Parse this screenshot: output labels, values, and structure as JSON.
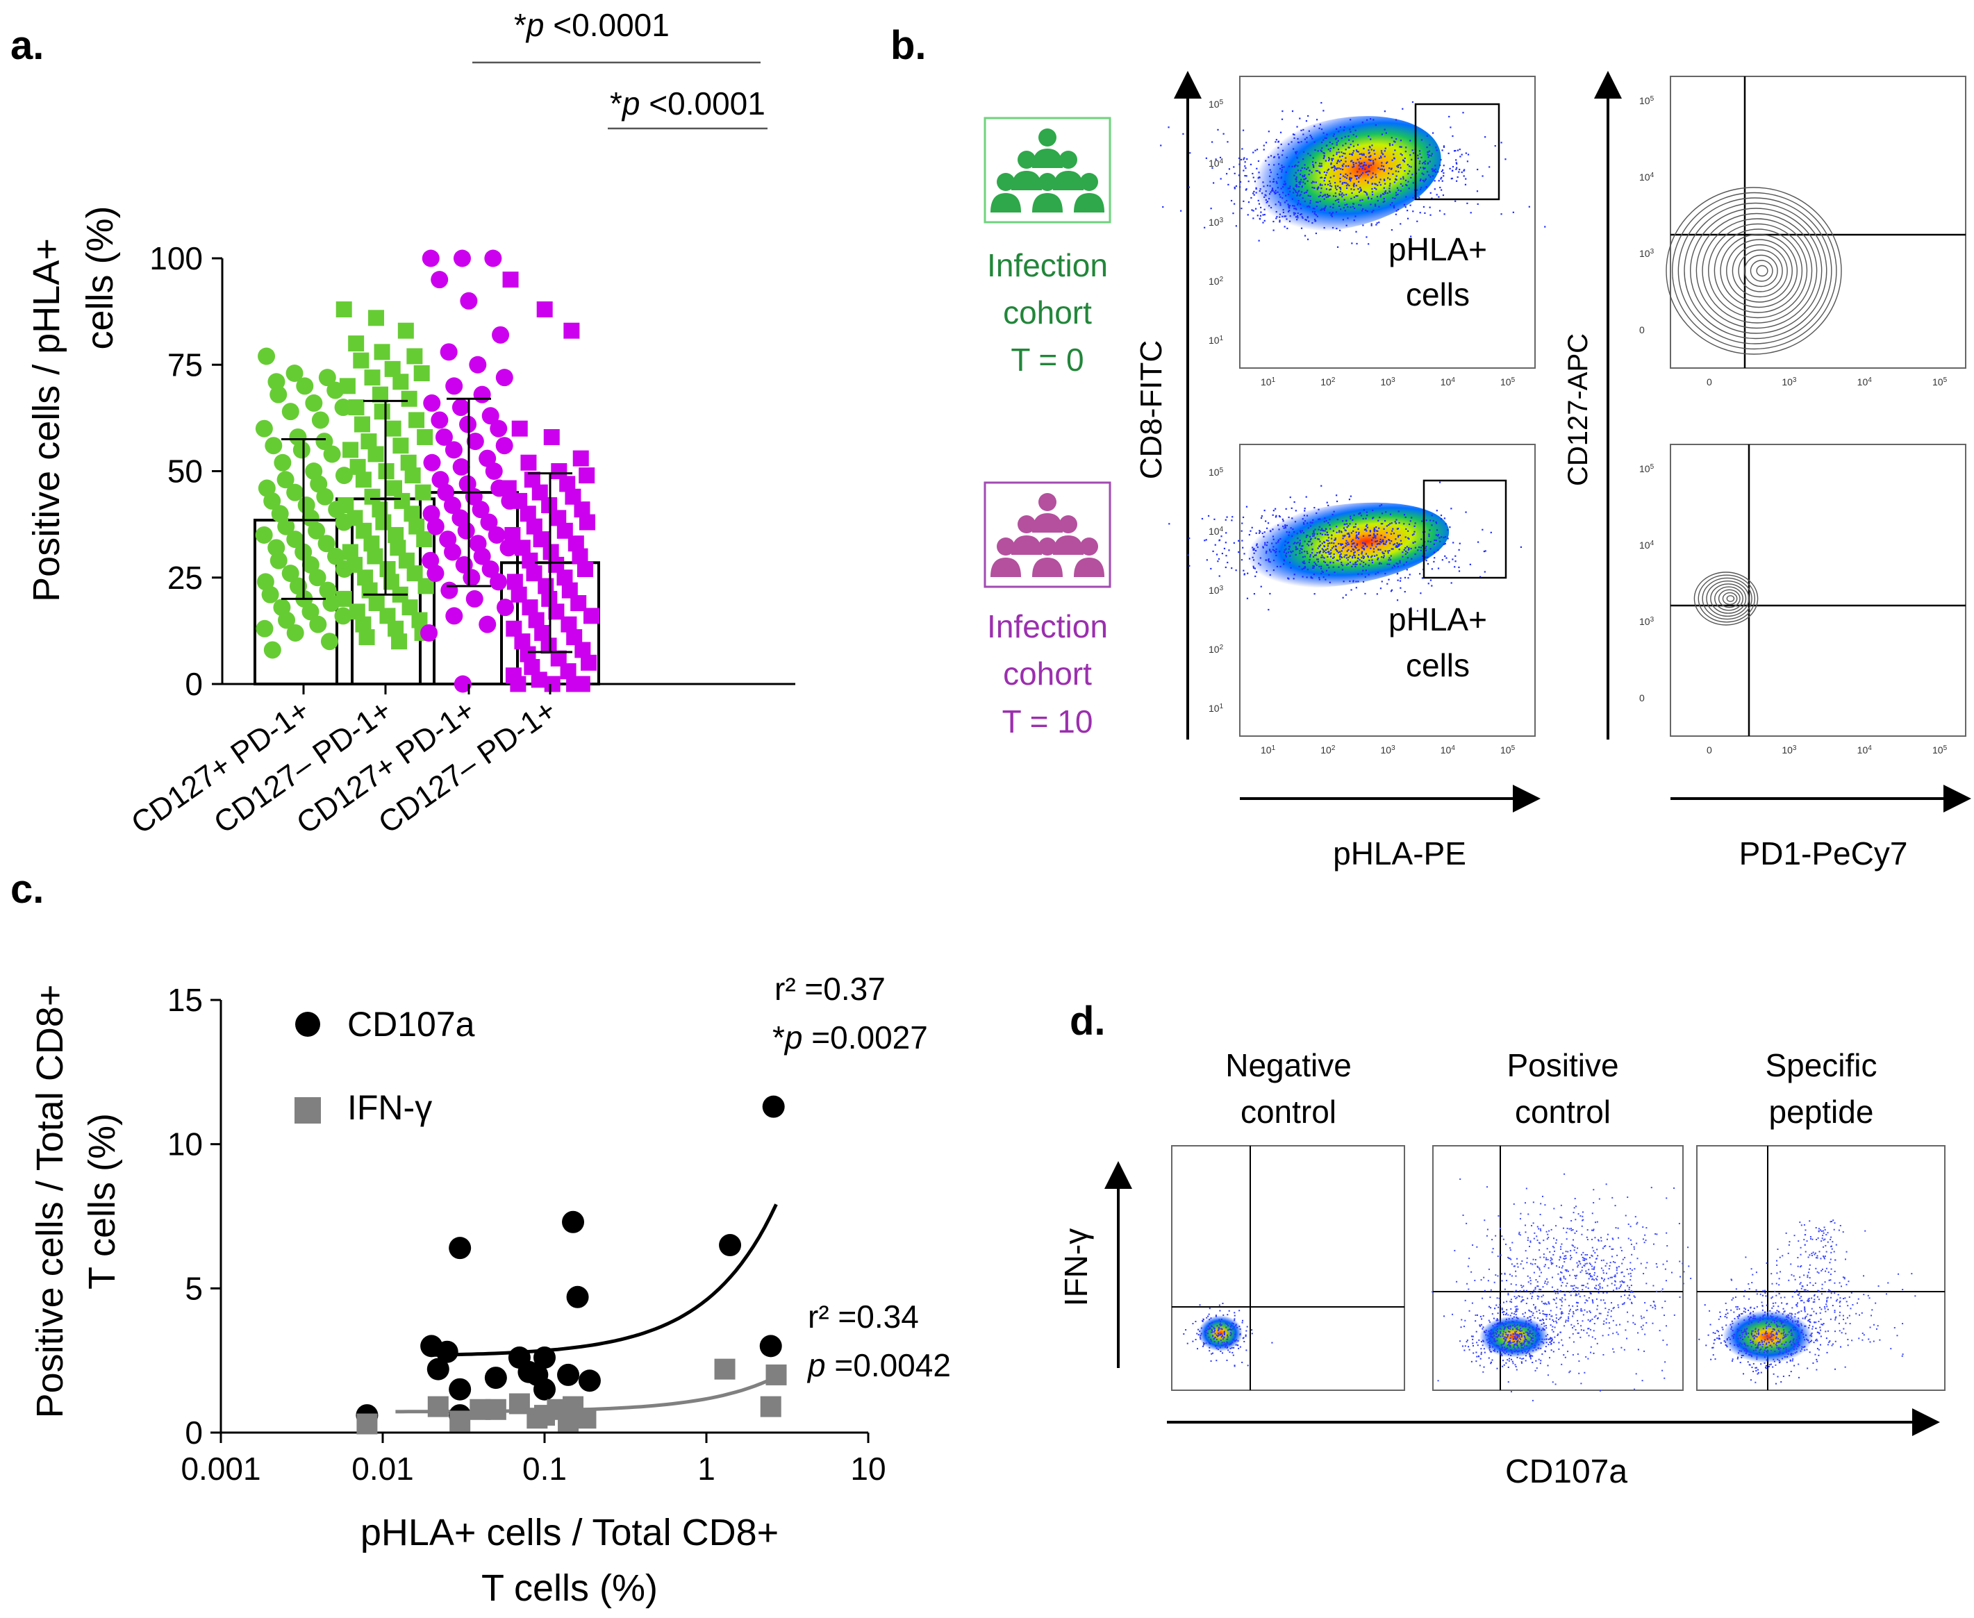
{
  "panels": {
    "a": {
      "label": "a.",
      "sig1": {
        "star": "*",
        "p": "p",
        "rest": " <0.0001"
      },
      "sig2": {
        "star": "*",
        "p": "p",
        "rest": " <0.0001"
      }
    },
    "b": {
      "label": "b.",
      "cohort_t0": {
        "line1": "Infection",
        "line2": "cohort",
        "line3": "T = 0",
        "color": "#22863a"
      },
      "cohort_t10": {
        "line1": "Infection",
        "line2": "cohort",
        "line3": "T = 10",
        "color": "#9b2fae"
      },
      "icon_color_t0": "#2ea84a",
      "icon_color_t10": "#b4509e",
      "ylabel_left": "CD8-FITC",
      "xlabel_left": "pHLA-PE",
      "ylabel_right": "CD127-APC",
      "xlabel_right": "PD1-PeCy7",
      "gate_label_1": "pHLA+",
      "gate_label_2": "cells",
      "log_ticks": [
        "10",
        "10",
        "10",
        "10",
        "10"
      ],
      "log_exps": [
        "1",
        "2",
        "3",
        "4",
        "5"
      ],
      "contour_ticks_y": [
        "0",
        "10",
        "10",
        "10"
      ],
      "contour_exps_y": [
        "",
        "3",
        "4",
        "5"
      ],
      "contour_ticks_x": [
        "0",
        "10",
        "10",
        "10"
      ],
      "contour_exps_x": [
        "",
        "3",
        "4",
        "5"
      ]
    },
    "c": {
      "label": "c."
    },
    "d": {
      "label": "d.",
      "titles": [
        {
          "line1": "Negative",
          "line2": "control"
        },
        {
          "line1": "Positive",
          "line2": "control"
        },
        {
          "line1": "Specific",
          "line2": "peptide"
        }
      ],
      "ylabel": "IFN-γ",
      "xlabel": "CD107a"
    }
  },
  "chart_data": [
    {
      "type": "scatter",
      "title": "",
      "ylabel_line1": "Positive cells / pHLA+",
      "ylabel_line2": "cells (%)",
      "ylim": [
        0,
        100
      ],
      "yticks": [
        "0",
        "25",
        "50",
        "75",
        "100"
      ],
      "categories": [
        "CD127+ PD-1+",
        "CD127– PD-1+",
        "CD127+ PD-1+",
        "CD127– PD-1+"
      ],
      "series": [
        {
          "name": "CD127+ PD-1+ (T=0)",
          "color": "#66cc33",
          "marker": "circle",
          "mean": 38.5,
          "sd_low": 20,
          "sd_high": 57.5,
          "values": [
            77,
            73,
            72,
            71,
            70,
            69,
            68,
            66,
            65,
            64,
            62,
            60,
            58,
            57,
            56,
            55,
            54,
            52,
            50,
            49,
            48,
            47,
            46,
            45,
            44,
            43,
            42,
            41,
            40,
            39,
            38,
            37,
            36,
            35,
            34,
            33,
            32,
            31,
            30,
            29,
            28,
            27,
            26,
            25,
            24,
            23,
            22,
            21,
            20,
            19,
            18,
            17,
            16,
            15,
            14,
            13,
            12,
            10,
            8
          ]
        },
        {
          "name": "CD127– PD-1+ (T=0)",
          "color": "#66cc33",
          "marker": "square",
          "mean": 43.5,
          "sd_low": 21,
          "sd_high": 66.5,
          "values": [
            88,
            86,
            83,
            80,
            78,
            77,
            76,
            74,
            73,
            72,
            71,
            70,
            68,
            67,
            65,
            64,
            62,
            61,
            60,
            58,
            57,
            56,
            55,
            54,
            52,
            51,
            50,
            49,
            48,
            46,
            45,
            44,
            43,
            42,
            41,
            40,
            39,
            38,
            37,
            36,
            35,
            34,
            33,
            32,
            31,
            30,
            29,
            28,
            27,
            26,
            25,
            24,
            23,
            22,
            21,
            20,
            19,
            18,
            17,
            16,
            15,
            14,
            13,
            12,
            11,
            10
          ]
        },
        {
          "name": "CD127+ PD-1+ (T=10)",
          "color": "#cc00ee",
          "marker": "circle",
          "mean": 45,
          "sd_low": 23,
          "sd_high": 67,
          "values": [
            100,
            100,
            100,
            95,
            90,
            82,
            78,
            75,
            72,
            70,
            68,
            66,
            65,
            63,
            62,
            61,
            60,
            58,
            57,
            56,
            55,
            53,
            52,
            51,
            50,
            48,
            47,
            46,
            45,
            44,
            43,
            42,
            41,
            40,
            39,
            38,
            37,
            36,
            35,
            34,
            33,
            32,
            31,
            30,
            29,
            28,
            27,
            26,
            25,
            24,
            22,
            20,
            18,
            16,
            14,
            12,
            0
          ]
        },
        {
          "name": "CD127– PD-1+ (T=10)",
          "color": "#cc00ee",
          "marker": "square",
          "mean": 28.5,
          "sd_low": 7.5,
          "sd_high": 49.5,
          "values": [
            95,
            88,
            83,
            60,
            58,
            53,
            52,
            50,
            49,
            48,
            47,
            46,
            45,
            44,
            43,
            42,
            41,
            40,
            39,
            38,
            37,
            36,
            35,
            34,
            33,
            32,
            31,
            30,
            29,
            28,
            27,
            26,
            25,
            24,
            23,
            22,
            21,
            20,
            19,
            18,
            17,
            16,
            15,
            14,
            13,
            12,
            11,
            10,
            9,
            8,
            7,
            6,
            5,
            4,
            3,
            2,
            1,
            0,
            0,
            0,
            0
          ]
        }
      ]
    },
    {
      "type": "scatter",
      "title": "",
      "xlabel_line1": "pHLA+ cells / Total CD8+",
      "xlabel_line2": "T cells (%)",
      "ylabel_line1": "Positive cells / Total CD8+",
      "ylabel_line2": "T cells (%)",
      "xscale": "log",
      "xlim": [
        0.001,
        10
      ],
      "ylim": [
        0,
        15
      ],
      "xticks": [
        "0.001",
        "0.01",
        "0.1",
        "1",
        "10"
      ],
      "yticks": [
        "0",
        "5",
        "10",
        "15"
      ],
      "series": [
        {
          "name": "CD107a",
          "color": "#000000",
          "marker": "circle",
          "x": [
            0.008,
            0.02,
            0.022,
            0.025,
            0.03,
            0.03,
            0.03,
            0.05,
            0.07,
            0.08,
            0.09,
            0.1,
            0.1,
            0.14,
            0.15,
            0.16,
            0.19,
            1.4,
            2.5,
            2.6
          ],
          "y": [
            0.6,
            3.0,
            2.2,
            2.8,
            6.4,
            1.5,
            0.6,
            1.9,
            2.6,
            2.1,
            2.0,
            2.6,
            1.5,
            2.0,
            7.3,
            4.7,
            1.8,
            6.5,
            3.0,
            11.3
          ],
          "stat1": "r² =0.37",
          "stat_star": "*",
          "stat_p": "p",
          "stat2": " =0.0027"
        },
        {
          "name": "IFN-γ",
          "color": "#808080",
          "marker": "square",
          "x": [
            0.008,
            0.022,
            0.03,
            0.04,
            0.05,
            0.07,
            0.09,
            0.1,
            0.12,
            0.14,
            0.15,
            0.18,
            1.3,
            2.5,
            2.7
          ],
          "y": [
            0.3,
            0.9,
            0.4,
            0.8,
            0.8,
            1.0,
            0.5,
            0.6,
            0.8,
            0.4,
            0.9,
            0.5,
            2.2,
            0.9,
            2.0
          ],
          "stat1": "r² =0.34",
          "stat_star": "",
          "stat_p": "p",
          "stat2": " =0.0042"
        }
      ]
    }
  ]
}
